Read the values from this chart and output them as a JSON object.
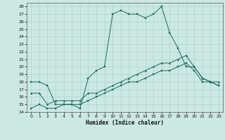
{
  "xlabel": "Humidex (Indice chaleur)",
  "bg_color": "#cce8e2",
  "grid_color": "#aad4cc",
  "line_color": "#1a6b5a",
  "xlim": [
    -0.5,
    23.5
  ],
  "ylim": [
    14,
    28.5
  ],
  "xticks": [
    0,
    1,
    2,
    3,
    4,
    5,
    6,
    7,
    8,
    9,
    10,
    11,
    12,
    13,
    14,
    15,
    16,
    17,
    18,
    19,
    20,
    21,
    22,
    23
  ],
  "yticks": [
    14,
    15,
    16,
    17,
    18,
    19,
    20,
    21,
    22,
    23,
    24,
    25,
    26,
    27,
    28
  ],
  "line1_x": [
    0,
    1,
    2,
    3,
    4,
    5,
    6,
    7,
    8,
    9,
    10,
    11,
    12,
    13,
    14,
    15,
    16,
    17,
    18,
    19,
    20,
    21,
    22,
    23
  ],
  "line1_y": [
    18.0,
    18.0,
    17.5,
    15.0,
    15.0,
    15.0,
    14.5,
    18.5,
    19.5,
    20.0,
    27.0,
    27.5,
    27.0,
    27.0,
    26.5,
    27.0,
    28.0,
    24.5,
    22.5,
    20.0,
    20.0,
    18.5,
    18.0,
    17.5
  ],
  "line2_x": [
    0,
    1,
    2,
    3,
    4,
    5,
    6,
    7,
    8,
    9,
    10,
    11,
    12,
    13,
    14,
    15,
    16,
    17,
    18,
    19,
    20,
    21,
    22,
    23
  ],
  "line2_y": [
    14.5,
    15.0,
    14.5,
    14.5,
    15.0,
    15.0,
    15.0,
    15.5,
    16.0,
    16.5,
    17.0,
    17.5,
    18.0,
    18.0,
    18.5,
    19.0,
    19.5,
    19.5,
    20.0,
    20.5,
    19.5,
    18.0,
    18.0,
    17.5
  ],
  "line3_x": [
    0,
    1,
    2,
    3,
    4,
    5,
    6,
    7,
    8,
    9,
    10,
    11,
    12,
    13,
    14,
    15,
    16,
    17,
    18,
    19,
    20,
    21,
    22,
    23
  ],
  "line3_y": [
    16.5,
    16.5,
    15.0,
    15.5,
    15.5,
    15.5,
    15.5,
    16.5,
    16.5,
    17.0,
    17.5,
    18.0,
    18.5,
    19.0,
    19.5,
    20.0,
    20.5,
    20.5,
    21.0,
    21.5,
    20.0,
    18.5,
    18.0,
    18.0
  ],
  "xlabel_fontsize": 5.5,
  "tick_fontsize": 4.5,
  "linewidth": 0.7,
  "markersize": 1.8
}
